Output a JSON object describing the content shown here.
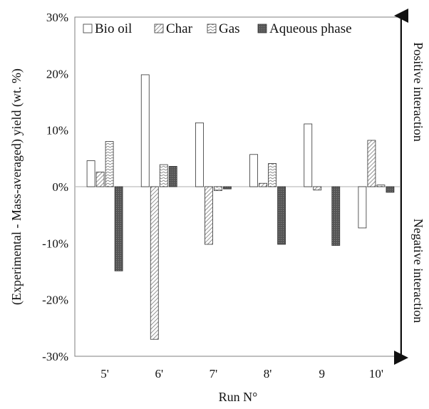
{
  "chart_data": {
    "type": "bar",
    "title": "",
    "xlabel": "Run N°",
    "ylabel": "(Experimental - Mass-averaged) yield (wt. %)",
    "categories": [
      "5'",
      "6'",
      "7'",
      "8'",
      "9",
      "10'"
    ],
    "ylim": [
      -30,
      30
    ],
    "yticks": [
      -30,
      -20,
      -10,
      0,
      10,
      20,
      30
    ],
    "ytick_labels": [
      "-30%",
      "-20%",
      "-10%",
      "0%",
      "10%",
      "20%",
      "30%"
    ],
    "grid": false,
    "legend_position": "top",
    "series": [
      {
        "name": "Bio oil",
        "pattern": "white",
        "values": [
          4.6,
          19.8,
          11.3,
          5.7,
          11.1,
          -7.3
        ]
      },
      {
        "name": "Char",
        "pattern": "diagonal-hatch",
        "values": [
          2.6,
          -27.0,
          -10.2,
          0.6,
          -0.6,
          8.2
        ]
      },
      {
        "name": "Gas",
        "pattern": "wavy-hatch",
        "values": [
          8.0,
          3.9,
          -0.7,
          4.1,
          0.0,
          0.3
        ]
      },
      {
        "name": "Aqueous phase",
        "pattern": "dark-dotted",
        "values": [
          -14.9,
          3.6,
          -0.4,
          -10.2,
          -10.4,
          -1.0
        ]
      }
    ],
    "annotations": {
      "top": "Positive interaction",
      "bottom": "Negative interaction"
    }
  }
}
